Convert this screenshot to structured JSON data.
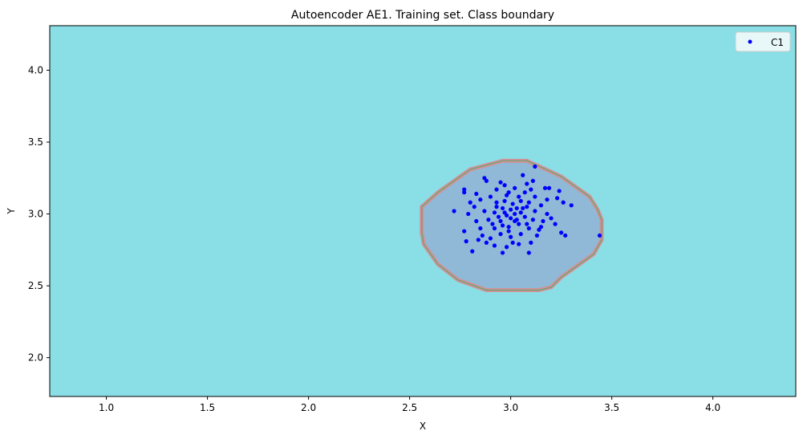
{
  "chart_data": {
    "type": "scatter",
    "title": "Autoencoder AE1. Training set. Class boundary",
    "xlabel": "X",
    "ylabel": "Y",
    "xlim": [
      0.72,
      4.41
    ],
    "ylim": [
      1.73,
      4.31
    ],
    "xticks": [
      1.0,
      1.5,
      2.0,
      2.5,
      3.0,
      3.5,
      4.0
    ],
    "xtick_labels": [
      "1.0",
      "1.5",
      "2.0",
      "2.5",
      "3.0",
      "3.5",
      "4.0"
    ],
    "yticks": [
      2.0,
      2.5,
      3.0,
      3.5,
      4.0
    ],
    "ytick_labels": [
      "2.0",
      "2.5",
      "3.0",
      "3.5",
      "4.0"
    ],
    "grid": false,
    "legend": {
      "position": "top-right",
      "entries": [
        "C1"
      ]
    },
    "colors": {
      "background_region": "#8adfe6",
      "inner_region": "#8fb9d6",
      "boundary_outer": "#d4909a",
      "boundary_inner": "#5fa86a",
      "points": "#0000ff"
    },
    "boundary_polygon": [
      [
        2.96,
        3.37
      ],
      [
        3.08,
        3.37
      ],
      [
        3.19,
        3.3
      ],
      [
        3.25,
        3.26
      ],
      [
        3.39,
        3.12
      ],
      [
        3.43,
        3.03
      ],
      [
        3.45,
        2.96
      ],
      [
        3.45,
        2.82
      ],
      [
        3.41,
        2.72
      ],
      [
        3.25,
        2.56
      ],
      [
        3.2,
        2.49
      ],
      [
        3.14,
        2.47
      ],
      [
        2.88,
        2.47
      ],
      [
        2.82,
        2.5
      ],
      [
        2.74,
        2.54
      ],
      [
        2.64,
        2.65
      ],
      [
        2.57,
        2.79
      ],
      [
        2.56,
        2.87
      ],
      [
        2.56,
        3.05
      ],
      [
        2.64,
        3.15
      ],
      [
        2.8,
        3.31
      ]
    ],
    "series": [
      {
        "name": "C1",
        "points": [
          [
            3.12,
            3.33
          ],
          [
            3.44,
            2.85
          ],
          [
            2.72,
            3.02
          ],
          [
            3.3,
            3.06
          ],
          [
            2.81,
            2.74
          ],
          [
            3.09,
            2.73
          ],
          [
            2.96,
            2.73
          ],
          [
            3.25,
            2.87
          ],
          [
            3.27,
            2.85
          ],
          [
            3.22,
            2.93
          ],
          [
            2.77,
            2.88
          ],
          [
            2.78,
            2.81
          ],
          [
            2.77,
            3.17
          ],
          [
            2.77,
            3.15
          ],
          [
            2.87,
            3.25
          ],
          [
            2.88,
            3.23
          ],
          [
            3.06,
            3.27
          ],
          [
            3.08,
            3.21
          ],
          [
            3.11,
            3.23
          ],
          [
            3.17,
            3.18
          ],
          [
            3.19,
            3.18
          ],
          [
            3.24,
            3.16
          ],
          [
            3.23,
            3.11
          ],
          [
            3.26,
            3.08
          ],
          [
            3.18,
            3.0
          ],
          [
            3.2,
            2.97
          ],
          [
            3.15,
            2.91
          ],
          [
            3.13,
            2.85
          ],
          [
            2.8,
            3.08
          ],
          [
            2.82,
            3.05
          ],
          [
            2.79,
            3.0
          ],
          [
            2.83,
            2.95
          ],
          [
            2.85,
            2.9
          ],
          [
            2.86,
            2.85
          ],
          [
            2.88,
            2.8
          ],
          [
            2.92,
            2.78
          ],
          [
            2.98,
            2.77
          ],
          [
            3.04,
            2.79
          ],
          [
            3.1,
            2.8
          ],
          [
            2.9,
            3.12
          ],
          [
            2.93,
            3.17
          ],
          [
            2.97,
            3.2
          ],
          [
            3.02,
            3.18
          ],
          [
            3.07,
            3.15
          ],
          [
            3.12,
            3.12
          ],
          [
            3.15,
            3.06
          ],
          [
            2.87,
            3.02
          ],
          [
            2.89,
            2.96
          ],
          [
            2.92,
            2.9
          ],
          [
            2.95,
            2.86
          ],
          [
            3.0,
            2.84
          ],
          [
            3.05,
            2.86
          ],
          [
            3.09,
            2.9
          ],
          [
            3.11,
            2.96
          ],
          [
            3.12,
            3.02
          ],
          [
            3.09,
            3.08
          ],
          [
            3.04,
            3.12
          ],
          [
            2.98,
            3.13
          ],
          [
            2.93,
            3.08
          ],
          [
            2.92,
            3.01
          ],
          [
            2.95,
            2.95
          ],
          [
            2.99,
            2.91
          ],
          [
            3.04,
            2.93
          ],
          [
            3.07,
            2.98
          ],
          [
            3.06,
            3.04
          ],
          [
            3.01,
            3.07
          ],
          [
            2.96,
            3.04
          ],
          [
            2.98,
            2.99
          ],
          [
            3.02,
            3.0
          ],
          [
            3.0,
            3.03
          ],
          [
            2.94,
            2.98
          ],
          [
            3.03,
            2.96
          ],
          [
            2.97,
            3.09
          ],
          [
            3.05,
            3.09
          ],
          [
            2.91,
            2.93
          ],
          [
            3.08,
            2.93
          ],
          [
            2.99,
            2.88
          ],
          [
            2.99,
            3.15
          ],
          [
            2.85,
            3.1
          ],
          [
            3.14,
            2.89
          ],
          [
            2.84,
            2.82
          ],
          [
            3.18,
            3.1
          ],
          [
            2.9,
            2.83
          ],
          [
            3.1,
            3.17
          ],
          [
            3.01,
            2.8
          ],
          [
            2.95,
            3.22
          ],
          [
            2.83,
            3.14
          ],
          [
            3.16,
            2.95
          ],
          [
            3.02,
            2.95
          ],
          [
            2.97,
            3.01
          ],
          [
            3.0,
            2.97
          ],
          [
            3.03,
            3.04
          ],
          [
            2.96,
            2.92
          ],
          [
            3.05,
            3.01
          ],
          [
            2.93,
            3.05
          ],
          [
            3.08,
            3.05
          ]
        ]
      }
    ]
  }
}
